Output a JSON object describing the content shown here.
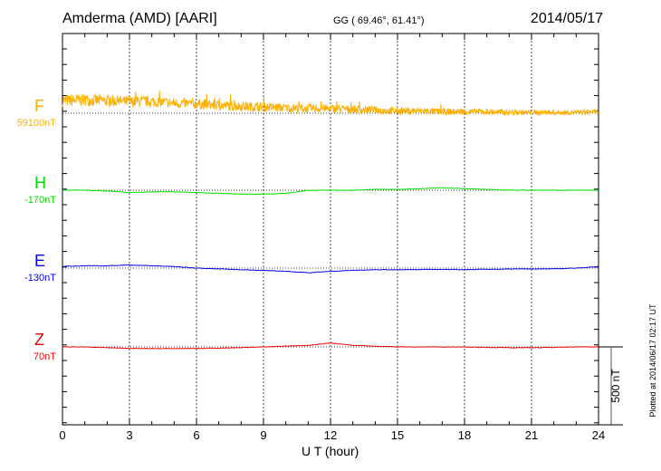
{
  "chart_data": {
    "type": "line",
    "title": "Amderma (AMD)  [AARI]",
    "coords": "GG ( 69.46°,  61.41°)",
    "date": "2014/05/17",
    "xlabel": "U T (hour)",
    "xlim": [
      0,
      24
    ],
    "xticks": [
      "0",
      "3",
      "6",
      "9",
      "12",
      "15",
      "18",
      "21",
      "24"
    ],
    "scale_bar": "500 nT",
    "footer": "Plotted at 2014/06/17 02:17 UT",
    "x": [
      0,
      1,
      2,
      3,
      4,
      5,
      6,
      7,
      8,
      9,
      10,
      11,
      12,
      13,
      14,
      15,
      16,
      17,
      18,
      19,
      20,
      21,
      22,
      23,
      24
    ],
    "series": [
      {
        "name": "F",
        "baseline_label": "59100nT",
        "color": "#ffb000",
        "noisy": true,
        "values": [
          80,
          85,
          80,
          75,
          75,
          65,
          60,
          50,
          45,
          40,
          35,
          30,
          30,
          25,
          20,
          15,
          15,
          10,
          10,
          10,
          5,
          5,
          5,
          5,
          10
        ]
      },
      {
        "name": "H",
        "baseline_label": "-170nT",
        "color": "#00dd00",
        "values": [
          0,
          0,
          -5,
          -15,
          -10,
          -10,
          -15,
          -20,
          -25,
          -25,
          -20,
          0,
          0,
          0,
          5,
          5,
          10,
          15,
          10,
          5,
          0,
          0,
          0,
          0,
          0
        ]
      },
      {
        "name": "E",
        "baseline_label": "-130nT",
        "color": "#0000ee",
        "values": [
          10,
          15,
          15,
          20,
          15,
          10,
          0,
          -5,
          -10,
          -15,
          -20,
          -30,
          -20,
          -15,
          -10,
          -10,
          -10,
          -8,
          -10,
          -8,
          -5,
          -5,
          -5,
          0,
          10
        ]
      },
      {
        "name": "Z",
        "baseline_label": "70nT",
        "color": "#ee0000",
        "values": [
          0,
          0,
          -5,
          -10,
          -10,
          -10,
          -10,
          -8,
          -5,
          0,
          5,
          10,
          25,
          10,
          5,
          0,
          0,
          0,
          0,
          -3,
          -5,
          -5,
          -3,
          0,
          0
        ]
      }
    ]
  }
}
